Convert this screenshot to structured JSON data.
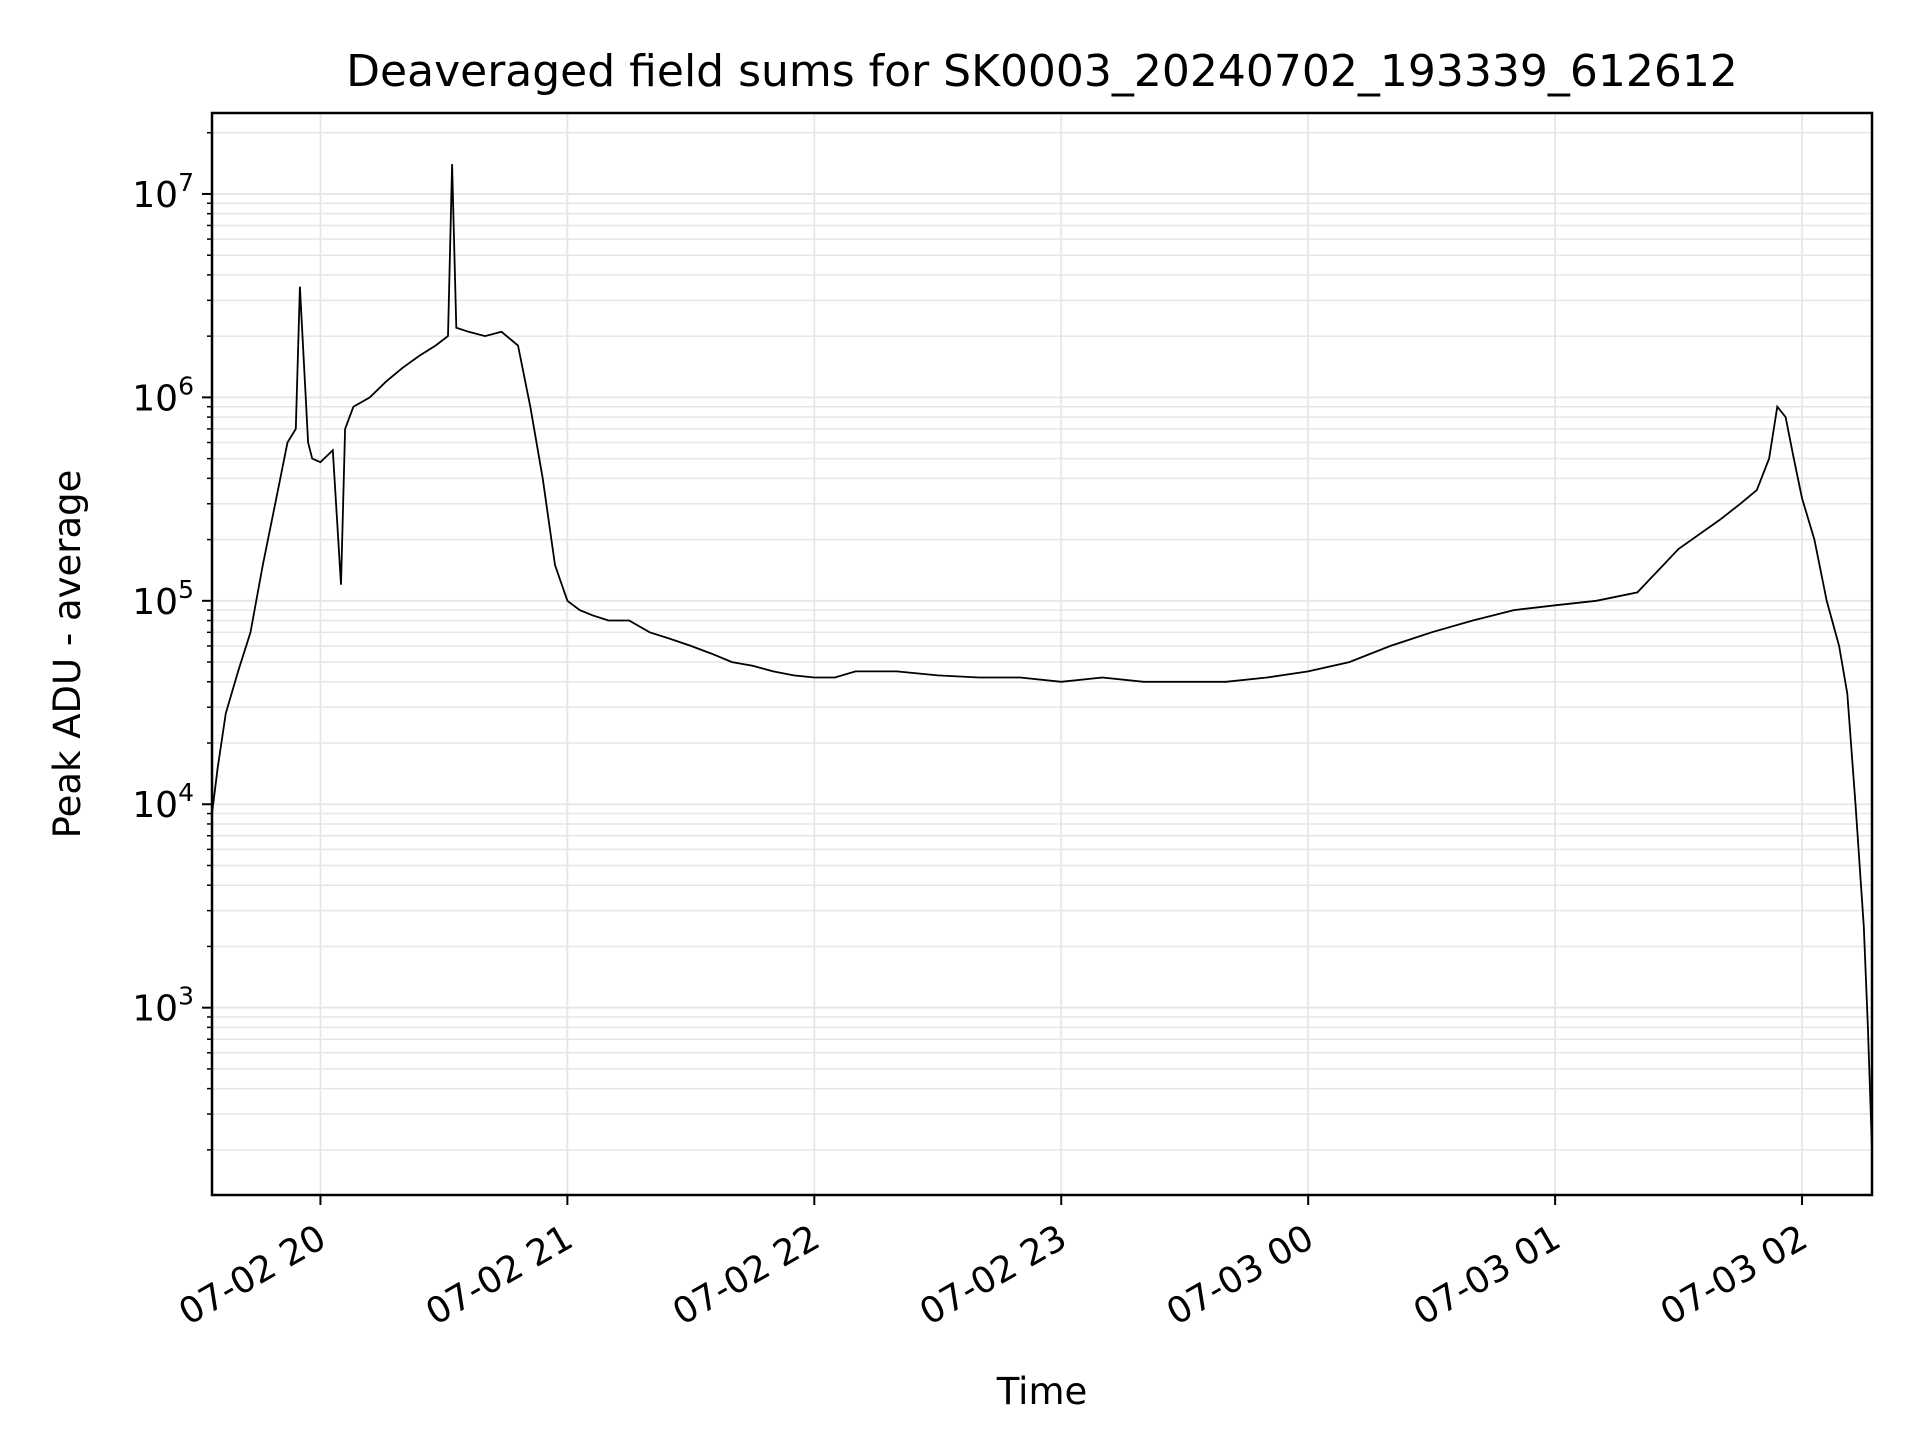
{
  "chart_data": {
    "type": "line",
    "title": "Deaveraged field sums for SK0003_20240702_193339_612612",
    "xlabel": "Time",
    "ylabel": "Peak ADU - average",
    "yscale": "log",
    "ylim": [
      120,
      25000000
    ],
    "xlim": [
      "2024-07-02 19:33:39",
      "2024-07-03 02:17:00"
    ],
    "grid": true,
    "x_tick_labels": [
      "07-02 20",
      "07-02 21",
      "07-02 22",
      "07-02 23",
      "07-03 00",
      "07-03 01",
      "07-03 02"
    ],
    "x_ticks": [
      "2024-07-02 20:00",
      "2024-07-02 21:00",
      "2024-07-02 22:00",
      "2024-07-02 23:00",
      "2024-07-03 00:00",
      "2024-07-03 01:00",
      "2024-07-03 02:00"
    ],
    "y_ticks": [
      1000,
      10000,
      100000,
      1000000,
      10000000
    ],
    "y_tick_labels": [
      {
        "base": "10",
        "exp": "3"
      },
      {
        "base": "10",
        "exp": "4"
      },
      {
        "base": "10",
        "exp": "5"
      },
      {
        "base": "10",
        "exp": "6"
      },
      {
        "base": "10",
        "exp": "7"
      }
    ],
    "line_color": "#000000",
    "grid_color": "#e6e6e6",
    "series": [
      {
        "x": [
          "2024-07-02 19:33:39",
          "2024-07-02 19:35",
          "2024-07-02 19:37",
          "2024-07-02 19:40",
          "2024-07-02 19:43",
          "2024-07-02 19:46",
          "2024-07-02 19:49",
          "2024-07-02 19:52",
          "2024-07-02 19:54",
          "2024-07-02 19:55",
          "2024-07-02 19:57",
          "2024-07-02 19:58",
          "2024-07-02 20:00",
          "2024-07-02 20:03",
          "2024-07-02 20:05",
          "2024-07-02 20:06",
          "2024-07-02 20:08",
          "2024-07-02 20:12",
          "2024-07-02 20:16",
          "2024-07-02 20:20",
          "2024-07-02 20:24",
          "2024-07-02 20:28",
          "2024-07-02 20:31",
          "2024-07-02 20:32",
          "2024-07-02 20:33",
          "2024-07-02 20:36",
          "2024-07-02 20:40",
          "2024-07-02 20:44",
          "2024-07-02 20:48",
          "2024-07-02 20:51",
          "2024-07-02 20:54",
          "2024-07-02 20:57",
          "2024-07-02 21:00",
          "2024-07-02 21:03",
          "2024-07-02 21:06",
          "2024-07-02 21:10",
          "2024-07-02 21:15",
          "2024-07-02 21:20",
          "2024-07-02 21:25",
          "2024-07-02 21:30",
          "2024-07-02 21:35",
          "2024-07-02 21:40",
          "2024-07-02 21:45",
          "2024-07-02 21:50",
          "2024-07-02 21:55",
          "2024-07-02 22:00",
          "2024-07-02 22:05",
          "2024-07-02 22:10",
          "2024-07-02 22:15",
          "2024-07-02 22:20",
          "2024-07-02 22:30",
          "2024-07-02 22:40",
          "2024-07-02 22:50",
          "2024-07-02 23:00",
          "2024-07-02 23:10",
          "2024-07-02 23:20",
          "2024-07-02 23:30",
          "2024-07-02 23:40",
          "2024-07-02 23:50",
          "2024-07-03 00:00",
          "2024-07-03 00:10",
          "2024-07-03 00:20",
          "2024-07-03 00:30",
          "2024-07-03 00:40",
          "2024-07-03 00:50",
          "2024-07-03 01:00",
          "2024-07-03 01:10",
          "2024-07-03 01:20",
          "2024-07-03 01:30",
          "2024-07-03 01:40",
          "2024-07-03 01:45",
          "2024-07-03 01:49",
          "2024-07-03 01:52",
          "2024-07-03 01:54",
          "2024-07-03 01:56",
          "2024-07-03 01:58",
          "2024-07-03 02:00",
          "2024-07-03 02:03",
          "2024-07-03 02:06",
          "2024-07-03 02:09",
          "2024-07-03 02:11",
          "2024-07-03 02:13",
          "2024-07-03 02:15",
          "2024-07-03 02:16",
          "2024-07-03 02:17"
        ],
        "y": [
          9000,
          15000,
          28000,
          45000,
          70000,
          150000,
          300000,
          600000,
          700000,
          3500000,
          600000,
          500000,
          480000,
          550000,
          120000,
          700000,
          900000,
          1000000,
          1200000,
          1400000,
          1600000,
          1800000,
          2000000,
          14000000,
          2200000,
          2100000,
          2000000,
          2100000,
          1800000,
          900000,
          400000,
          150000,
          100000,
          90000,
          85000,
          80000,
          80000,
          70000,
          65000,
          60000,
          55000,
          50000,
          48000,
          45000,
          43000,
          42000,
          42000,
          45000,
          45000,
          45000,
          43000,
          42000,
          42000,
          40000,
          42000,
          40000,
          40000,
          40000,
          42000,
          45000,
          50000,
          60000,
          70000,
          80000,
          90000,
          95000,
          100000,
          110000,
          180000,
          250000,
          300000,
          350000,
          500000,
          900000,
          800000,
          500000,
          320000,
          200000,
          100000,
          60000,
          35000,
          10000,
          2500,
          800,
          200
        ]
      }
    ]
  }
}
